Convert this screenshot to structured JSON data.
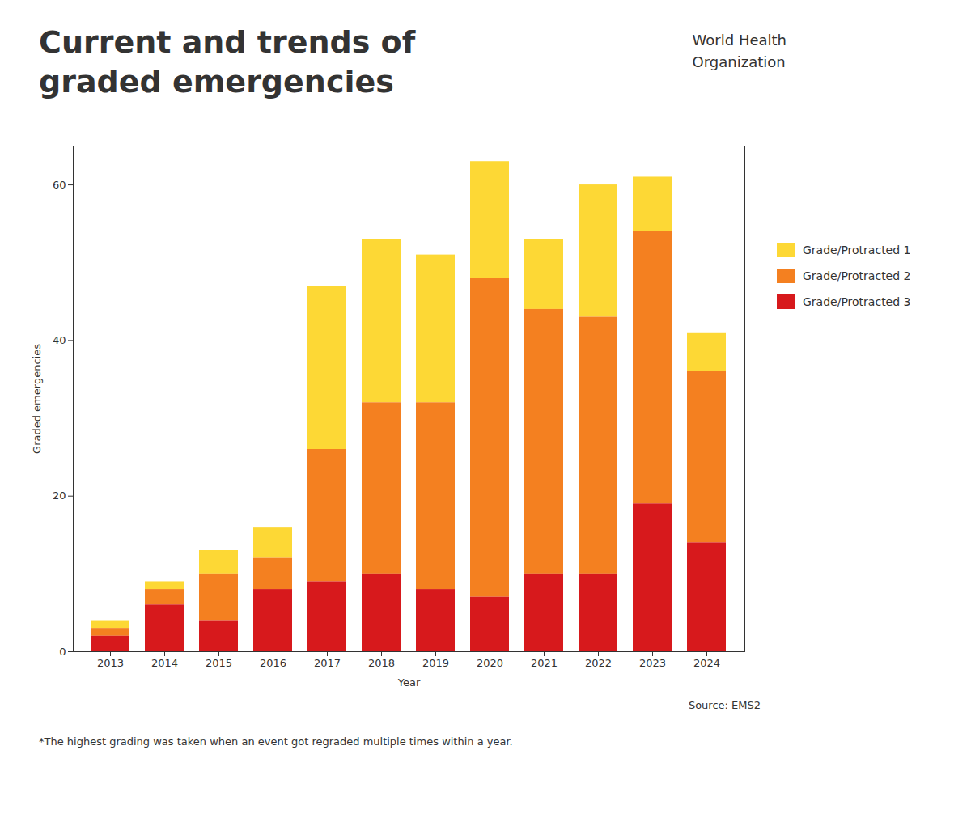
{
  "chart_data": {
    "type": "bar",
    "title": "Current and trends of\ngraded emergencies",
    "x_label": "Year",
    "y_label": "Graded emergencies",
    "categories": [
      "2013",
      "2014",
      "2015",
      "2016",
      "2017",
      "2018",
      "2019",
      "2020",
      "2021",
      "2022",
      "2023",
      "2024"
    ],
    "series": [
      {
        "name": "Grade/Protracted 1",
        "color": "#fdd835",
        "values": [
          1,
          1,
          3,
          4,
          21,
          21,
          19,
          15,
          9,
          17,
          7,
          5
        ]
      },
      {
        "name": "Grade/Protracted 2",
        "color": "#f48020",
        "values": [
          1,
          2,
          6,
          4,
          17,
          22,
          24,
          41,
          34,
          33,
          35,
          22
        ]
      },
      {
        "name": "Grade/Protracted 3",
        "color": "#d7191c",
        "values": [
          2,
          6,
          4,
          8,
          9,
          10,
          8,
          7,
          10,
          10,
          19,
          14
        ]
      }
    ],
    "stacked": true,
    "ylim": [
      0,
      65
    ],
    "yticks": [
      0,
      20,
      40,
      60
    ],
    "grid": false,
    "legend": "right",
    "annotations": [
      "World Health\nOrganization",
      "Source: EMS2",
      "*The highest grading was taken when an event got regraded multiple times within a year."
    ]
  }
}
